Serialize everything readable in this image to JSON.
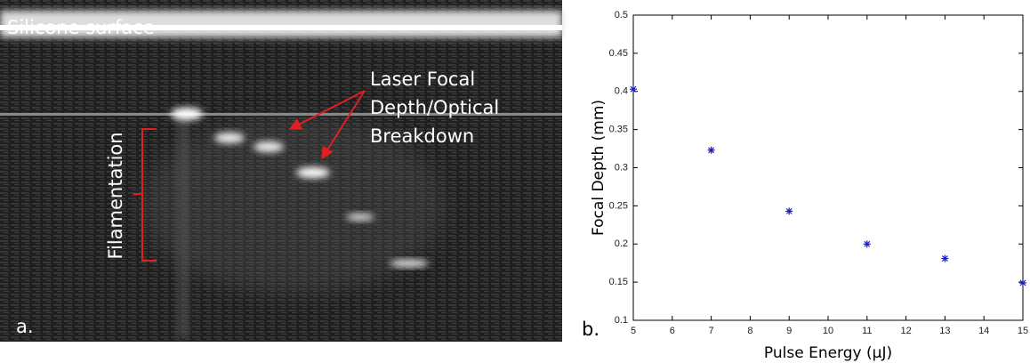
{
  "image": {
    "panel_label": "a.",
    "surface_label": "Silicone surface",
    "focus_label": [
      "Laser Focal",
      "Depth/Optical",
      "Breakdown"
    ],
    "filament_label": "Filamentation"
  },
  "chart_data": {
    "type": "scatter",
    "panel_label": "b.",
    "x_label": "Pulse Energy (μJ)",
    "y_label": "Focal Depth (mm)",
    "series": [
      {
        "color": "#1f1fb4",
        "x": [
          5,
          7,
          9,
          11,
          13,
          15
        ],
        "values": [
          0.403,
          0.323,
          0.243,
          0.2,
          0.181,
          0.149
        ]
      }
    ],
    "xlim": [
      5,
      15
    ],
    "xticks": [
      5,
      6,
      7,
      8,
      9,
      10,
      11,
      12,
      13,
      14,
      15
    ],
    "ylim": [
      0.1,
      0.5
    ],
    "yticks": [
      0.1,
      0.15,
      0.2,
      0.25,
      0.3,
      0.35,
      0.4,
      0.45,
      0.5
    ],
    "grid": false
  }
}
